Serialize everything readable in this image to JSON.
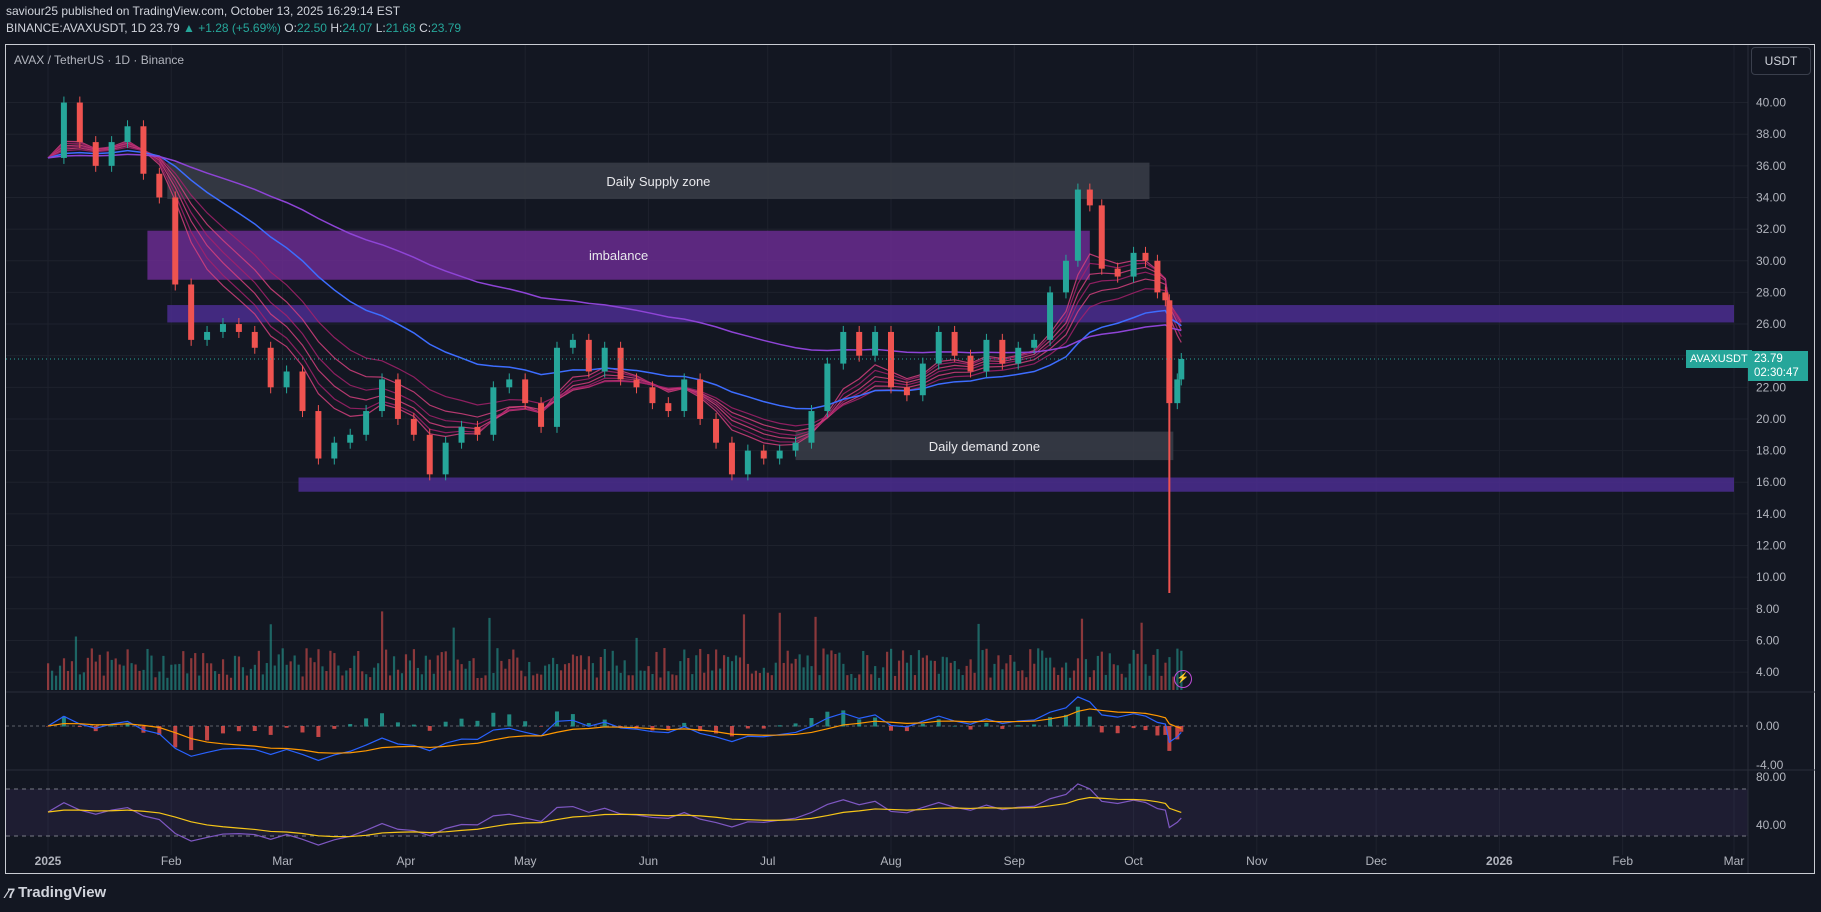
{
  "header": {
    "line1": "saviour25 published on TradingView.com, October 13, 2025 16:29:14 EST",
    "symbol": "BINANCE:AVAXUSDT, 1D",
    "last": "23.79",
    "change": "▲ +1.28 (+5.69%)",
    "o_label": "O:",
    "o": "22.50",
    "h_label": "H:",
    "h": "24.07",
    "l_label": "L:",
    "l": "21.68",
    "c_label": "C:",
    "c": "23.79"
  },
  "chart_data": {
    "type": "line",
    "title": "AVAX / TetherUS · 1D · Binance",
    "currency": "USDT",
    "symbol_label": "AVAXUSDT",
    "last_price": "23.79",
    "countdown": "02:30:47",
    "x_ticks": [
      "2025",
      "Feb",
      "Mar",
      "Apr",
      "May",
      "Jun",
      "Jul",
      "Aug",
      "Sep",
      "Oct",
      "Nov",
      "Dec",
      "2026",
      "Feb",
      "Mar"
    ],
    "y_ticks": [
      "40.00",
      "38.00",
      "36.00",
      "34.00",
      "32.00",
      "30.00",
      "28.00",
      "26.00",
      "24.00",
      "22.00",
      "20.00",
      "18.00",
      "16.00",
      "14.00",
      "12.00",
      "10.00",
      "8.00",
      "6.00",
      "4.00"
    ],
    "ylim": [
      3.5,
      42.5
    ],
    "macd_ticks": [
      "0.00",
      "-4.00"
    ],
    "rsi_ticks": [
      "80.00",
      "40.00"
    ],
    "zones": [
      {
        "label": "Daily Supply zone",
        "x0": "2025-01-31",
        "x1": "2025-10-05",
        "y0": 33.9,
        "y1": 36.2,
        "color": "#3a3d48"
      },
      {
        "label": "imbalance",
        "x0": "2025-01-26",
        "x1": "2025-09-20",
        "y0": 28.8,
        "y1": 31.9,
        "color": "#6a2b8f"
      },
      {
        "label": "",
        "x0": "2025-01-31",
        "x1": "2026-03-01",
        "y0": 26.1,
        "y1": 27.2,
        "color": "#4b2d8f"
      },
      {
        "label": "Daily demand zone",
        "x0": "2025-07-08",
        "x1": "2025-10-11",
        "y0": 17.4,
        "y1": 19.2,
        "color": "#3a3d48"
      },
      {
        "label": "",
        "x0": "2025-03-05",
        "x1": "2026-03-01",
        "y0": 15.4,
        "y1": 16.3,
        "color": "#4b2d8f"
      }
    ],
    "price_series": [
      {
        "date": "2025-01-01",
        "close": 36.5
      },
      {
        "date": "2025-01-05",
        "close": 40.0
      },
      {
        "date": "2025-01-09",
        "close": 37.5
      },
      {
        "date": "2025-01-13",
        "close": 36.0
      },
      {
        "date": "2025-01-17",
        "close": 37.5
      },
      {
        "date": "2025-01-21",
        "close": 38.5
      },
      {
        "date": "2025-01-25",
        "close": 35.5
      },
      {
        "date": "2025-01-29",
        "close": 34.0
      },
      {
        "date": "2025-02-02",
        "close": 28.5
      },
      {
        "date": "2025-02-06",
        "close": 25.0
      },
      {
        "date": "2025-02-10",
        "close": 25.5
      },
      {
        "date": "2025-02-14",
        "close": 26.0
      },
      {
        "date": "2025-02-18",
        "close": 25.5
      },
      {
        "date": "2025-02-22",
        "close": 24.5
      },
      {
        "date": "2025-02-26",
        "close": 22.0
      },
      {
        "date": "2025-03-02",
        "close": 23.0
      },
      {
        "date": "2025-03-06",
        "close": 20.5
      },
      {
        "date": "2025-03-10",
        "close": 17.5
      },
      {
        "date": "2025-03-14",
        "close": 18.5
      },
      {
        "date": "2025-03-18",
        "close": 19.0
      },
      {
        "date": "2025-03-22",
        "close": 20.5
      },
      {
        "date": "2025-03-26",
        "close": 22.5
      },
      {
        "date": "2025-03-30",
        "close": 20.0
      },
      {
        "date": "2025-04-03",
        "close": 19.0
      },
      {
        "date": "2025-04-07",
        "close": 16.5
      },
      {
        "date": "2025-04-11",
        "close": 18.5
      },
      {
        "date": "2025-04-15",
        "close": 19.5
      },
      {
        "date": "2025-04-19",
        "close": 19.0
      },
      {
        "date": "2025-04-23",
        "close": 22.0
      },
      {
        "date": "2025-04-27",
        "close": 22.5
      },
      {
        "date": "2025-05-01",
        "close": 21.0
      },
      {
        "date": "2025-05-05",
        "close": 19.5
      },
      {
        "date": "2025-05-09",
        "close": 24.5
      },
      {
        "date": "2025-05-13",
        "close": 25.0
      },
      {
        "date": "2025-05-17",
        "close": 23.0
      },
      {
        "date": "2025-05-21",
        "close": 24.5
      },
      {
        "date": "2025-05-25",
        "close": 22.5
      },
      {
        "date": "2025-05-29",
        "close": 22.0
      },
      {
        "date": "2025-06-02",
        "close": 21.0
      },
      {
        "date": "2025-06-06",
        "close": 20.5
      },
      {
        "date": "2025-06-10",
        "close": 22.5
      },
      {
        "date": "2025-06-14",
        "close": 20.0
      },
      {
        "date": "2025-06-18",
        "close": 18.5
      },
      {
        "date": "2025-06-22",
        "close": 16.5
      },
      {
        "date": "2025-06-26",
        "close": 18.0
      },
      {
        "date": "2025-06-30",
        "close": 17.5
      },
      {
        "date": "2025-07-04",
        "close": 18.0
      },
      {
        "date": "2025-07-08",
        "close": 18.5
      },
      {
        "date": "2025-07-12",
        "close": 20.5
      },
      {
        "date": "2025-07-16",
        "close": 23.5
      },
      {
        "date": "2025-07-20",
        "close": 25.5
      },
      {
        "date": "2025-07-24",
        "close": 24.0
      },
      {
        "date": "2025-07-28",
        "close": 25.5
      },
      {
        "date": "2025-08-01",
        "close": 22.0
      },
      {
        "date": "2025-08-05",
        "close": 21.5
      },
      {
        "date": "2025-08-09",
        "close": 23.5
      },
      {
        "date": "2025-08-13",
        "close": 25.5
      },
      {
        "date": "2025-08-17",
        "close": 24.0
      },
      {
        "date": "2025-08-21",
        "close": 23.0
      },
      {
        "date": "2025-08-25",
        "close": 25.0
      },
      {
        "date": "2025-08-29",
        "close": 23.5
      },
      {
        "date": "2025-09-02",
        "close": 24.5
      },
      {
        "date": "2025-09-06",
        "close": 25.0
      },
      {
        "date": "2025-09-10",
        "close": 28.0
      },
      {
        "date": "2025-09-14",
        "close": 30.0
      },
      {
        "date": "2025-09-17",
        "close": 34.5
      },
      {
        "date": "2025-09-20",
        "close": 33.5
      },
      {
        "date": "2025-09-23",
        "close": 29.5
      },
      {
        "date": "2025-09-27",
        "close": 29.0
      },
      {
        "date": "2025-10-01",
        "close": 30.5
      },
      {
        "date": "2025-10-04",
        "close": 30.0
      },
      {
        "date": "2025-10-07",
        "close": 28.0
      },
      {
        "date": "2025-10-09",
        "close": 27.5
      },
      {
        "date": "2025-10-10",
        "close": 21.0
      },
      {
        "date": "2025-10-12",
        "close": 22.5
      },
      {
        "date": "2025-10-13",
        "close": 23.79
      }
    ],
    "flash_low": {
      "date": "2025-10-10",
      "low": 9.0
    },
    "last_date": "2025-10-13"
  },
  "branding": {
    "name": "TradingView"
  }
}
